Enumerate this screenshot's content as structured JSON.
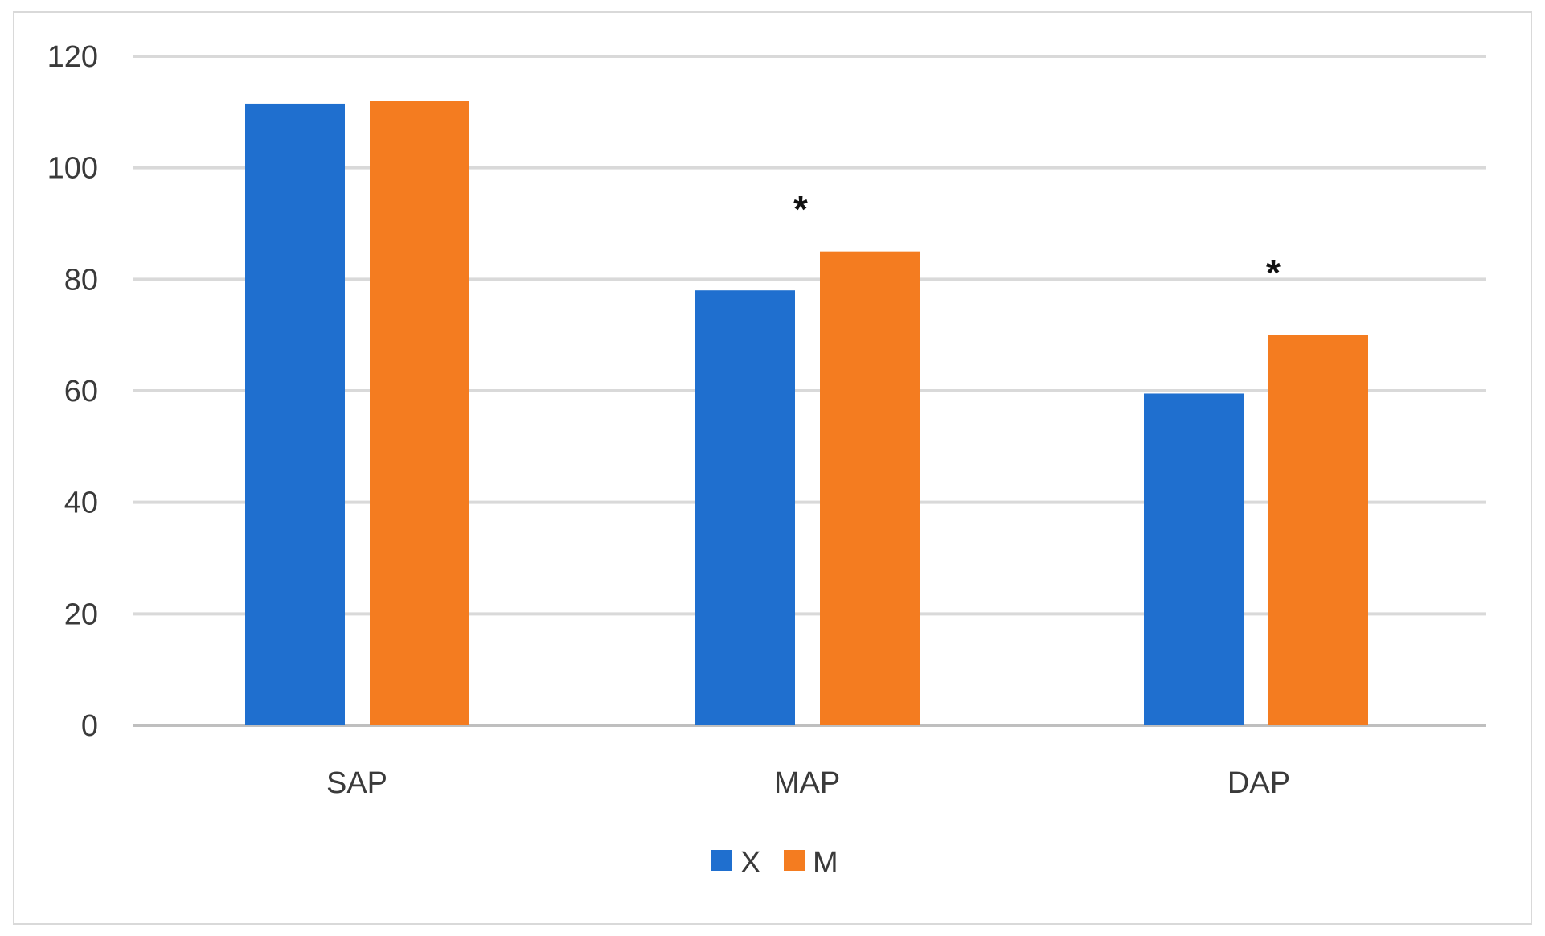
{
  "chart_data": {
    "type": "bar",
    "title": "",
    "xlabel": "",
    "ylabel": "",
    "categories": [
      "SAP",
      "MAP",
      "DAP"
    ],
    "series": [
      {
        "name": "X",
        "color": "#1f6fcf",
        "values": [
          111.5,
          78,
          59.5
        ]
      },
      {
        "name": "M",
        "color": "#f47c20",
        "values": [
          112,
          85,
          70
        ]
      }
    ],
    "ylim": [
      0,
      120
    ],
    "yticks": [
      0,
      20,
      40,
      60,
      80,
      100,
      120
    ],
    "grid": true,
    "legend_position": "bottom",
    "annotations": [
      {
        "category": "MAP",
        "text": "*"
      },
      {
        "category": "DAP",
        "text": "*"
      }
    ]
  }
}
